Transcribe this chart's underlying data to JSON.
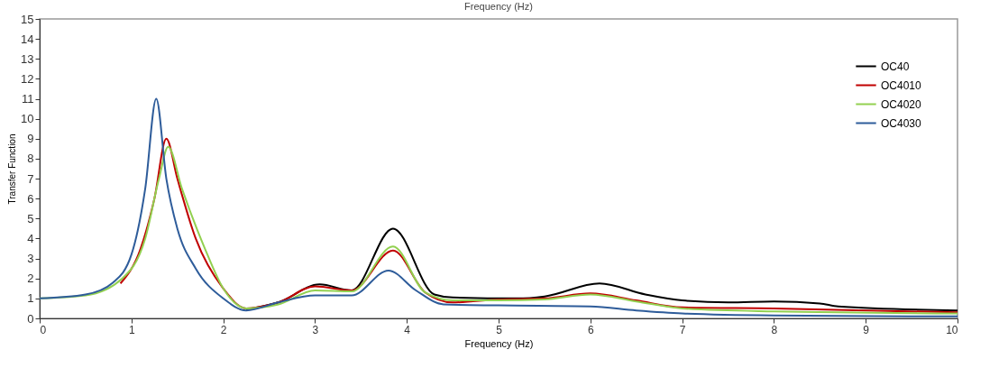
{
  "chart_data": {
    "type": "line",
    "title": "Frequency (Hz)",
    "xlabel": "Frequency (Hz)",
    "ylabel": "Transfer Function",
    "xlim": [
      0,
      10
    ],
    "xticks": [
      0,
      1,
      2,
      3,
      4,
      5,
      6,
      7,
      8,
      9,
      10
    ],
    "ylim": [
      0,
      15
    ],
    "yticks": [
      0,
      1,
      2,
      3,
      4,
      5,
      6,
      7,
      8,
      9,
      10,
      11,
      12,
      13,
      14,
      15
    ],
    "grid": false,
    "legend": "top right",
    "marker": "none",
    "line_style": "solid",
    "series": [
      {
        "name": "OC40",
        "color": "#000000",
        "x": [
          2.25,
          2.6,
          3.05,
          3.4,
          3.85,
          4.3,
          4.5,
          5.2,
          5.5,
          6.1,
          6.6,
          7.0,
          7.5,
          8.0,
          8.5,
          8.7,
          10
        ],
        "values": [
          0.45,
          0.8,
          1.7,
          1.4,
          4.5,
          1.2,
          1.05,
          1.0,
          1.1,
          1.75,
          1.2,
          0.9,
          0.8,
          0.85,
          0.75,
          0.6,
          0.4
        ]
      },
      {
        "name": "OC4010",
        "color": "#c00000",
        "x": [
          0.88,
          1.1,
          1.25,
          1.38,
          1.5,
          1.7,
          2.0,
          2.25,
          2.6,
          3.0,
          3.4,
          3.85,
          4.2,
          4.5,
          5.0,
          5.5,
          6.0,
          6.5,
          7.0,
          8.0,
          10
        ],
        "values": [
          1.75,
          3.5,
          6.0,
          9.0,
          7.0,
          4.0,
          1.5,
          0.5,
          0.8,
          1.6,
          1.4,
          3.4,
          1.3,
          0.8,
          0.95,
          1.0,
          1.25,
          0.9,
          0.55,
          0.5,
          0.3
        ]
      },
      {
        "name": "OC4020",
        "color": "#92d050",
        "x": [
          0,
          0.5,
          0.9,
          1.15,
          1.3,
          1.4,
          1.55,
          1.8,
          2.0,
          2.25,
          2.6,
          3.0,
          3.4,
          3.85,
          4.2,
          4.5,
          5.0,
          5.5,
          6.0,
          6.5,
          7.0,
          8.0,
          10
        ],
        "values": [
          1.0,
          1.15,
          2.0,
          4.0,
          7.0,
          8.6,
          6.5,
          3.5,
          1.5,
          0.5,
          0.7,
          1.4,
          1.35,
          3.6,
          1.3,
          0.9,
          0.9,
          0.95,
          1.2,
          0.85,
          0.5,
          0.35,
          0.25
        ]
      },
      {
        "name": "OC4030",
        "color": "#2e5c9a",
        "x": [
          0,
          0.5,
          0.8,
          1.0,
          1.15,
          1.27,
          1.38,
          1.5,
          1.7,
          2.0,
          2.25,
          2.6,
          3.0,
          3.4,
          3.8,
          4.1,
          4.4,
          5.0,
          6.0,
          6.5,
          7.0,
          8.0,
          10
        ],
        "values": [
          1.0,
          1.2,
          1.8,
          3.2,
          6.5,
          11.0,
          7.0,
          4.5,
          2.5,
          1.0,
          0.4,
          0.8,
          1.15,
          1.15,
          2.4,
          1.4,
          0.7,
          0.65,
          0.6,
          0.4,
          0.25,
          0.15,
          0.1
        ]
      }
    ]
  }
}
